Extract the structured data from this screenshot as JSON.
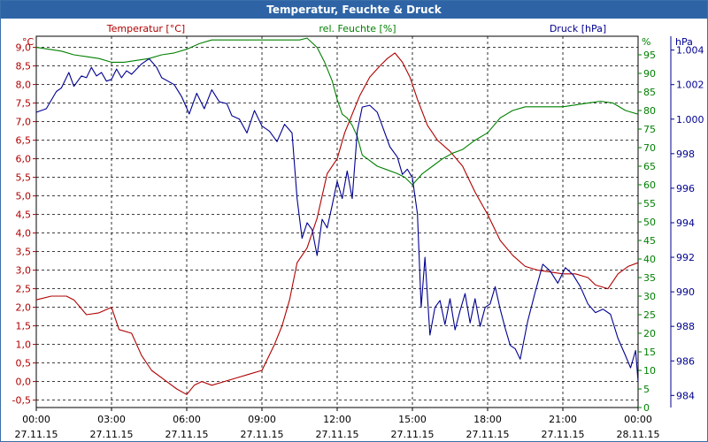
{
  "window": {
    "title": "Temperatur, Feuchte & Druck"
  },
  "chart_data": {
    "type": "line",
    "title": "Temperatur, Feuchte & Druck",
    "grid": true,
    "x_labels": [
      {
        "time": "00:00",
        "date": "27.11.15"
      },
      {
        "time": "03:00",
        "date": "27.11.15"
      },
      {
        "time": "06:00",
        "date": "27.11.15"
      },
      {
        "time": "09:00",
        "date": "27.11.15"
      },
      {
        "time": "12:00",
        "date": "27.11.15"
      },
      {
        "time": "15:00",
        "date": "27.11.15"
      },
      {
        "time": "18:00",
        "date": "27.11.15"
      },
      {
        "time": "21:00",
        "date": "27.11.15"
      },
      {
        "time": "00:00",
        "date": "28.11.15"
      }
    ],
    "x_range_hours": [
      0,
      24
    ],
    "axes": {
      "temperature": {
        "unit": "°C",
        "label": "Temperatur [°C]",
        "range": [
          -0.7,
          9.3
        ],
        "color": "#b00000",
        "ticks": [
          "-0,5",
          "0,0",
          "0,5",
          "1,0",
          "1,5",
          "2,0",
          "2,5",
          "3,0",
          "3,5",
          "4,0",
          "4,5",
          "5,0",
          "5,5",
          "6,0",
          "6,5",
          "7,0",
          "7,5",
          "8,0",
          "8,5",
          "9,0"
        ]
      },
      "humidity": {
        "unit": "%",
        "label": "rel. Feuchte [%]",
        "range": [
          0,
          100
        ],
        "color": "#008000",
        "ticks": [
          "0",
          "5",
          "10",
          "15",
          "20",
          "25",
          "30",
          "35",
          "40",
          "45",
          "50",
          "55",
          "60",
          "65",
          "70",
          "75",
          "80",
          "85",
          "90",
          "95"
        ]
      },
      "pressure": {
        "unit": "hPa",
        "label": "Druck [hPa]",
        "range": [
          983.3,
          1004.8
        ],
        "color": "#000090",
        "ticks": [
          "984",
          "986",
          "988",
          "990",
          "992",
          "994",
          "996",
          "998",
          "1.000",
          "1.002",
          "1.004"
        ]
      }
    },
    "series": [
      {
        "name": "Temperatur [°C]",
        "axis": "temperature",
        "color": "#b00000",
        "points": [
          [
            0,
            2.2
          ],
          [
            0.6,
            2.3
          ],
          [
            1.2,
            2.3
          ],
          [
            1.5,
            2.2
          ],
          [
            2.0,
            1.8
          ],
          [
            2.5,
            1.85
          ],
          [
            3.0,
            2.0
          ],
          [
            3.3,
            1.4
          ],
          [
            3.8,
            1.3
          ],
          [
            4.2,
            0.7
          ],
          [
            4.6,
            0.3
          ],
          [
            5.2,
            0.0
          ],
          [
            5.6,
            -0.2
          ],
          [
            6.0,
            -0.35
          ],
          [
            6.3,
            -0.1
          ],
          [
            6.6,
            0.0
          ],
          [
            7.0,
            -0.1
          ],
          [
            7.5,
            0.0
          ],
          [
            8.0,
            0.1
          ],
          [
            8.5,
            0.2
          ],
          [
            9.0,
            0.3
          ],
          [
            9.5,
            1.0
          ],
          [
            9.8,
            1.5
          ],
          [
            10.1,
            2.2
          ],
          [
            10.4,
            3.2
          ],
          [
            10.8,
            3.6
          ],
          [
            11.2,
            4.4
          ],
          [
            11.6,
            5.6
          ],
          [
            12.0,
            6.0
          ],
          [
            12.3,
            6.7
          ],
          [
            12.6,
            7.2
          ],
          [
            12.9,
            7.7
          ],
          [
            13.3,
            8.2
          ],
          [
            13.7,
            8.5
          ],
          [
            14.0,
            8.7
          ],
          [
            14.3,
            8.85
          ],
          [
            14.6,
            8.6
          ],
          [
            14.9,
            8.2
          ],
          [
            15.2,
            7.6
          ],
          [
            15.6,
            6.9
          ],
          [
            16.0,
            6.5
          ],
          [
            16.5,
            6.2
          ],
          [
            17.0,
            5.8
          ],
          [
            17.5,
            5.1
          ],
          [
            18.0,
            4.5
          ],
          [
            18.5,
            3.8
          ],
          [
            19.0,
            3.4
          ],
          [
            19.5,
            3.1
          ],
          [
            20.0,
            3.0
          ],
          [
            20.5,
            2.95
          ],
          [
            21.0,
            2.9
          ],
          [
            21.5,
            2.9
          ],
          [
            22.0,
            2.8
          ],
          [
            22.3,
            2.6
          ],
          [
            22.8,
            2.5
          ],
          [
            23.2,
            2.9
          ],
          [
            23.6,
            3.1
          ],
          [
            24.0,
            3.2
          ]
        ]
      },
      {
        "name": "rel. Feuchte [%]",
        "axis": "humidity",
        "color": "#008000",
        "points": [
          [
            0,
            97
          ],
          [
            0.5,
            96.5
          ],
          [
            1.0,
            96
          ],
          [
            1.5,
            95
          ],
          [
            2.0,
            94.5
          ],
          [
            2.5,
            94
          ],
          [
            3.0,
            93
          ],
          [
            3.5,
            93
          ],
          [
            4.0,
            93.5
          ],
          [
            4.5,
            94
          ],
          [
            5.0,
            95
          ],
          [
            5.5,
            95.5
          ],
          [
            6.0,
            96.5
          ],
          [
            6.5,
            98
          ],
          [
            7.0,
            99
          ],
          [
            8.0,
            99
          ],
          [
            9.0,
            99
          ],
          [
            10.0,
            99
          ],
          [
            10.5,
            99
          ],
          [
            10.8,
            99.5
          ],
          [
            11.2,
            97
          ],
          [
            11.5,
            93
          ],
          [
            11.8,
            88
          ],
          [
            12.0,
            83
          ],
          [
            12.2,
            79
          ],
          [
            12.4,
            78
          ],
          [
            12.6,
            76
          ],
          [
            12.8,
            73
          ],
          [
            13.0,
            68
          ],
          [
            13.2,
            67
          ],
          [
            13.6,
            65
          ],
          [
            14.0,
            64
          ],
          [
            14.4,
            63
          ],
          [
            14.7,
            62
          ],
          [
            15.0,
            60
          ],
          [
            15.4,
            63
          ],
          [
            15.8,
            65
          ],
          [
            16.2,
            67
          ],
          [
            16.6,
            68.5
          ],
          [
            17.0,
            69.5
          ],
          [
            17.5,
            72
          ],
          [
            18.0,
            74
          ],
          [
            18.5,
            78
          ],
          [
            19.0,
            80
          ],
          [
            19.5,
            81
          ],
          [
            20.0,
            81
          ],
          [
            20.5,
            81
          ],
          [
            21.0,
            81
          ],
          [
            21.5,
            81.5
          ],
          [
            22.0,
            82
          ],
          [
            22.5,
            82.5
          ],
          [
            23.0,
            82
          ],
          [
            23.5,
            80
          ],
          [
            24.0,
            79
          ]
        ]
      },
      {
        "name": "Druck [hPa]",
        "axis": "pressure",
        "color": "#000090",
        "points": [
          [
            0,
            1000.4
          ],
          [
            0.4,
            1000.6
          ],
          [
            0.8,
            1001.6
          ],
          [
            1.0,
            1001.8
          ],
          [
            1.3,
            1002.7
          ],
          [
            1.5,
            1001.9
          ],
          [
            1.8,
            1002.5
          ],
          [
            2.0,
            1002.4
          ],
          [
            2.2,
            1003.0
          ],
          [
            2.4,
            1002.5
          ],
          [
            2.6,
            1002.7
          ],
          [
            2.8,
            1002.2
          ],
          [
            3.0,
            1002.3
          ],
          [
            3.2,
            1002.9
          ],
          [
            3.4,
            1002.4
          ],
          [
            3.6,
            1002.8
          ],
          [
            3.8,
            1002.6
          ],
          [
            4.0,
            1002.9
          ],
          [
            4.2,
            1003.2
          ],
          [
            4.5,
            1003.5
          ],
          [
            4.8,
            1003.0
          ],
          [
            5.0,
            1002.4
          ],
          [
            5.5,
            1002.0
          ],
          [
            5.8,
            1001.3
          ],
          [
            6.1,
            1000.3
          ],
          [
            6.4,
            1001.5
          ],
          [
            6.7,
            1000.6
          ],
          [
            7.0,
            1001.7
          ],
          [
            7.3,
            1001.0
          ],
          [
            7.6,
            1000.9
          ],
          [
            7.8,
            1000.2
          ],
          [
            8.1,
            1000.0
          ],
          [
            8.4,
            999.2
          ],
          [
            8.7,
            1000.5
          ],
          [
            9.0,
            999.6
          ],
          [
            9.3,
            999.3
          ],
          [
            9.6,
            998.7
          ],
          [
            9.9,
            999.7
          ],
          [
            10.2,
            999.2
          ],
          [
            10.4,
            995.4
          ],
          [
            10.6,
            993.1
          ],
          [
            10.8,
            994.0
          ],
          [
            11.0,
            993.6
          ],
          [
            11.2,
            992.1
          ],
          [
            11.4,
            994.2
          ],
          [
            11.6,
            993.7
          ],
          [
            11.8,
            995.0
          ],
          [
            12.0,
            996.4
          ],
          [
            12.2,
            995.4
          ],
          [
            12.4,
            997.0
          ],
          [
            12.6,
            995.4
          ],
          [
            12.8,
            999.3
          ],
          [
            13.0,
            1000.7
          ],
          [
            13.3,
            1000.8
          ],
          [
            13.6,
            1000.4
          ],
          [
            13.8,
            999.6
          ],
          [
            14.1,
            998.4
          ],
          [
            14.4,
            997.8
          ],
          [
            14.6,
            996.8
          ],
          [
            14.8,
            997.1
          ],
          [
            15.0,
            996.6
          ],
          [
            15.2,
            994.5
          ],
          [
            15.35,
            989.1
          ],
          [
            15.5,
            992.0
          ],
          [
            15.7,
            987.5
          ],
          [
            15.9,
            989.1
          ],
          [
            16.1,
            989.5
          ],
          [
            16.3,
            988.1
          ],
          [
            16.5,
            989.6
          ],
          [
            16.7,
            987.8
          ],
          [
            16.9,
            988.9
          ],
          [
            17.1,
            989.9
          ],
          [
            17.3,
            988.2
          ],
          [
            17.5,
            989.6
          ],
          [
            17.7,
            988.0
          ],
          [
            17.9,
            989.1
          ],
          [
            18.1,
            989.3
          ],
          [
            18.3,
            990.3
          ],
          [
            18.5,
            989.0
          ],
          [
            18.7,
            987.9
          ],
          [
            18.9,
            986.9
          ],
          [
            19.1,
            986.7
          ],
          [
            19.3,
            986.1
          ],
          [
            19.6,
            988.3
          ],
          [
            19.9,
            990.0
          ],
          [
            20.2,
            991.6
          ],
          [
            20.5,
            991.2
          ],
          [
            20.8,
            990.5
          ],
          [
            21.1,
            991.4
          ],
          [
            21.4,
            991.0
          ],
          [
            21.7,
            990.3
          ],
          [
            22.0,
            989.3
          ],
          [
            22.3,
            988.8
          ],
          [
            22.6,
            989.0
          ],
          [
            22.9,
            988.7
          ],
          [
            23.2,
            987.3
          ],
          [
            23.5,
            986.3
          ],
          [
            23.7,
            985.6
          ],
          [
            23.9,
            986.6
          ],
          [
            24.0,
            984.8
          ]
        ]
      }
    ]
  }
}
